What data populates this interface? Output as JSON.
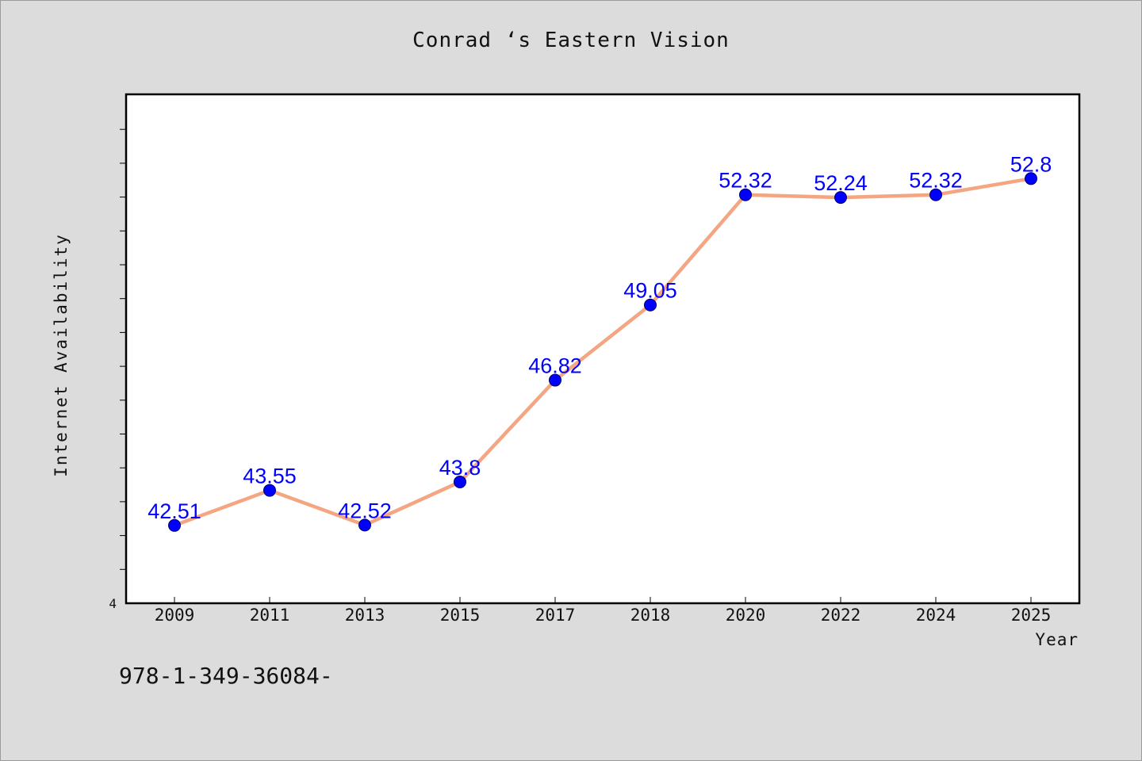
{
  "chart_data": {
    "type": "line",
    "title": "Conrad ‘s Eastern Vision",
    "xlabel": "Year",
    "ylabel": "Internet Availability",
    "categories": [
      "2009",
      "2011",
      "2013",
      "2015",
      "2017",
      "2018",
      "2020",
      "2022",
      "2024",
      "2025"
    ],
    "series": [
      {
        "values": [
          42.51,
          43.55,
          42.52,
          43.8,
          46.82,
          49.05,
          52.32,
          52.24,
          52.32,
          52.8
        ],
        "data_labels": [
          "42.51",
          "43.55",
          "42.52",
          "43.8",
          "46.82",
          "49.05",
          "52.32",
          "52.24",
          "52.32",
          "52.8"
        ],
        "line_color": "#f4a582",
        "marker_color": "#0000ff"
      }
    ],
    "y_tick_labels": [
      "4"
    ],
    "ylim": [
      40.2,
      55.3
    ],
    "grid": false,
    "legend": false
  },
  "footer": {
    "code": "978-1-349-36084-"
  },
  "colors": {
    "background": "#dcdcdc",
    "plot_background": "#ffffff",
    "data_label": "#0000ff"
  }
}
